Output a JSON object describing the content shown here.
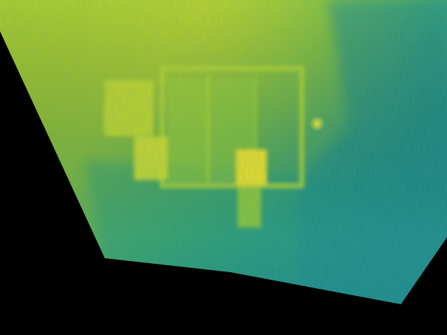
{
  "image": {
    "kind": "thermal false-color projection",
    "palette": {
      "hot": "#f2df2a",
      "warm": "#c4d12d",
      "mid": "#84bf3a",
      "cool": "#33a86a",
      "cold": "#1b8a8f",
      "background": "#000000"
    },
    "regions": [
      "projected-ground-surface",
      "door-frame",
      "door-panel-left",
      "door-panel-right",
      "warm-window-left",
      "warm-block-left",
      "warm-patch-right",
      "warm-strip-right",
      "hot-spot",
      "background-mask"
    ]
  }
}
